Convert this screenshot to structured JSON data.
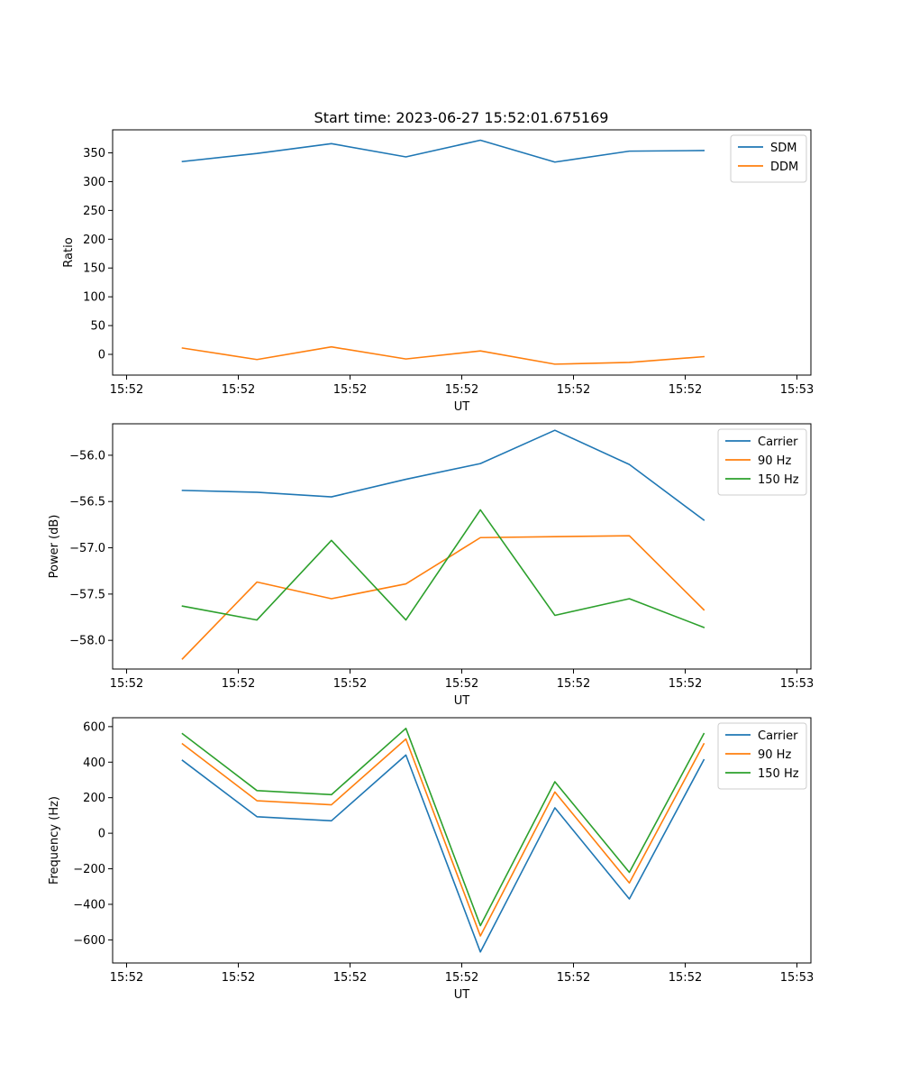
{
  "title": "Start time: 2023-06-27 15:52:01.675169",
  "colors": {
    "blue": "#1f77b4",
    "orange": "#ff7f0e",
    "green": "#2ca02c"
  },
  "chart_data": [
    {
      "type": "line",
      "ylabel": "Ratio",
      "xlabel": "UT",
      "xlim": [
        -0.1875,
        9.1875
      ],
      "x": [
        0.75,
        1.75,
        2.75,
        3.75,
        4.75,
        5.75,
        6.75,
        7.75
      ],
      "x_tick_values": [
        0,
        1.5,
        3,
        4.5,
        6,
        7.5,
        9
      ],
      "x_tick_labels": [
        "15:52",
        "15:52",
        "15:52",
        "15:52",
        "15:52",
        "15:52",
        "15:53"
      ],
      "ylim": [
        -36,
        390
      ],
      "y_ticks": [
        0,
        50,
        100,
        150,
        200,
        250,
        300,
        350
      ],
      "legend": "upper right",
      "series": [
        {
          "name": "SDM",
          "color": "#1f77b4",
          "values": [
            335,
            349,
            366,
            343,
            372,
            334,
            353,
            354
          ]
        },
        {
          "name": "DDM",
          "color": "#ff7f0e",
          "values": [
            11,
            -9,
            13,
            -8,
            6,
            -17,
            -14,
            -4
          ]
        }
      ]
    },
    {
      "type": "line",
      "ylabel": "Power (dB)",
      "xlabel": "UT",
      "xlim": [
        -0.1875,
        9.1875
      ],
      "x": [
        0.75,
        1.75,
        2.75,
        3.75,
        4.75,
        5.75,
        6.75,
        7.75
      ],
      "x_tick_values": [
        0,
        1.5,
        3,
        4.5,
        6,
        7.5,
        9
      ],
      "x_tick_labels": [
        "15:52",
        "15:52",
        "15:52",
        "15:52",
        "15:52",
        "15:52",
        "15:53"
      ],
      "ylim": [
        -58.31,
        -55.66
      ],
      "y_ticks": [
        -58.0,
        -57.5,
        -57.0,
        -56.5,
        -56.0
      ],
      "y_tick_labels": [
        "−58.0",
        "−57.5",
        "−57.0",
        "−56.5",
        "−56.0"
      ],
      "legend": "upper right",
      "series": [
        {
          "name": "Carrier",
          "color": "#1f77b4",
          "values": [
            -56.38,
            -56.4,
            -56.45,
            -56.26,
            -56.09,
            -55.73,
            -56.1,
            -56.7
          ]
        },
        {
          "name": "90 Hz",
          "color": "#ff7f0e",
          "values": [
            -58.2,
            -57.37,
            -57.55,
            -57.39,
            -56.89,
            -56.88,
            -56.87,
            -57.67
          ]
        },
        {
          "name": "150 Hz",
          "color": "#2ca02c",
          "values": [
            -57.63,
            -57.78,
            -56.92,
            -57.78,
            -56.59,
            -57.73,
            -57.55,
            -57.86
          ]
        }
      ]
    },
    {
      "type": "line",
      "ylabel": "Frequency (Hz)",
      "xlabel": "UT",
      "xlim": [
        -0.1875,
        9.1875
      ],
      "x": [
        0.75,
        1.75,
        2.75,
        3.75,
        4.75,
        5.75,
        6.75,
        7.75
      ],
      "x_tick_values": [
        0,
        1.5,
        3,
        4.5,
        6,
        7.5,
        9
      ],
      "x_tick_labels": [
        "15:52",
        "15:52",
        "15:52",
        "15:52",
        "15:52",
        "15:52",
        "15:53"
      ],
      "ylim": [
        -730,
        650
      ],
      "y_ticks": [
        -600,
        -400,
        -200,
        0,
        200,
        400,
        600
      ],
      "y_tick_labels": [
        "−600",
        "−400",
        "−200",
        "0",
        "200",
        "400",
        "600"
      ],
      "legend": "upper right",
      "series": [
        {
          "name": "Carrier",
          "color": "#1f77b4",
          "values": [
            410,
            93,
            70,
            440,
            -668,
            143,
            -370,
            413
          ]
        },
        {
          "name": "90 Hz",
          "color": "#ff7f0e",
          "values": [
            503,
            183,
            160,
            530,
            -578,
            232,
            -280,
            503
          ]
        },
        {
          "name": "150 Hz",
          "color": "#2ca02c",
          "values": [
            560,
            240,
            217,
            590,
            -520,
            290,
            -220,
            560
          ]
        }
      ]
    }
  ]
}
